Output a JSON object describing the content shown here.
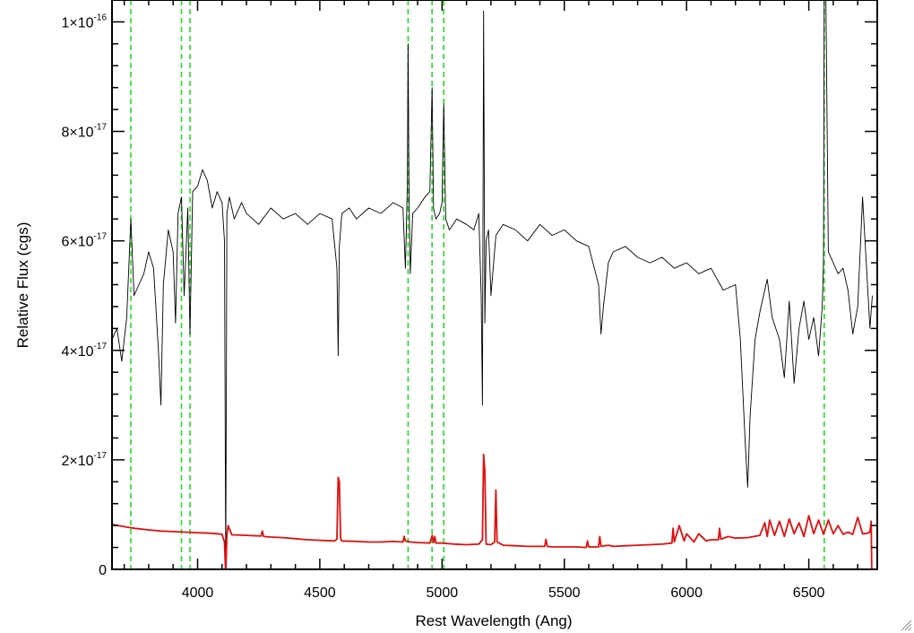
{
  "colors": {
    "spectrum": "#000000",
    "error": "#e01010",
    "lines": "#22dd22",
    "axis": "#000000"
  },
  "chart_data": {
    "type": "line",
    "title": "",
    "xlabel": "Rest Wavelength (Ang)",
    "ylabel": "Relative Flux (cgs)",
    "xlim": [
      3650,
      6780
    ],
    "ylim": [
      0,
      1.04e-16
    ],
    "x_ticks": [
      {
        "value": 4000,
        "label": "4000"
      },
      {
        "value": 4500,
        "label": "4500"
      },
      {
        "value": 5000,
        "label": "5000"
      },
      {
        "value": 5500,
        "label": "5500"
      },
      {
        "value": 6000,
        "label": "6000"
      },
      {
        "value": 6500,
        "label": "6500"
      }
    ],
    "y_ticks": [
      {
        "value": 0,
        "label": "0",
        "exp": ""
      },
      {
        "value": 2e-17,
        "label": "2×10",
        "exp": "-17"
      },
      {
        "value": 4e-17,
        "label": "4×10",
        "exp": "-17"
      },
      {
        "value": 6e-17,
        "label": "6×10",
        "exp": "-17"
      },
      {
        "value": 8e-17,
        "label": "8×10",
        "exp": "-17"
      },
      {
        "value": 1e-16,
        "label": "1×10",
        "exp": "-16"
      }
    ],
    "reference_lines": [
      3727,
      3934,
      3969,
      4861,
      4959,
      5007,
      6563
    ],
    "grid": false,
    "series": [
      {
        "style": "black",
        "x": [
          3650,
          3670,
          3690,
          3710,
          3727,
          3740,
          3760,
          3780,
          3800,
          3820,
          3840,
          3850,
          3860,
          3880,
          3900,
          3910,
          3920,
          3934,
          3945,
          3960,
          3969,
          3980,
          4000,
          4020,
          4040,
          4060,
          4080,
          4100,
          4110,
          4115,
          4120,
          4130,
          4150,
          4180,
          4200,
          4250,
          4300,
          4350,
          4400,
          4450,
          4500,
          4550,
          4570,
          4575,
          4580,
          4590,
          4620,
          4650,
          4700,
          4750,
          4800,
          4840,
          4850,
          4858,
          4861,
          4865,
          4870,
          4880,
          4900,
          4930,
          4950,
          4959,
          4965,
          4975,
          4990,
          5000,
          5007,
          5015,
          5030,
          5060,
          5100,
          5130,
          5150,
          5160,
          5165,
          5170,
          5175,
          5180,
          5190,
          5200,
          5220,
          5250,
          5300,
          5350,
          5400,
          5450,
          5500,
          5550,
          5600,
          5640,
          5650,
          5660,
          5680,
          5700,
          5750,
          5800,
          5850,
          5900,
          5950,
          6000,
          6050,
          6100,
          6150,
          6200,
          6220,
          6240,
          6250,
          6260,
          6280,
          6300,
          6330,
          6350,
          6380,
          6400,
          6420,
          6440,
          6460,
          6480,
          6500,
          6520,
          6540,
          6555,
          6560,
          6563,
          6570,
          6580,
          6600,
          6620,
          6640,
          6660,
          6680,
          6700,
          6720,
          6740,
          6750,
          6760
        ],
        "y": [
          4.2e-17,
          4.4e-17,
          3.8e-17,
          4.6e-17,
          6.4e-17,
          5e-17,
          5.2e-17,
          5.4e-17,
          5.8e-17,
          5.5e-17,
          4e-17,
          3e-17,
          5.2e-17,
          6.2e-17,
          5.8e-17,
          4.5e-17,
          6.5e-17,
          6.8e-17,
          5e-17,
          6.6e-17,
          4.3e-17,
          6.9e-17,
          7e-17,
          7.3e-17,
          7.1e-17,
          6.6e-17,
          6.9e-17,
          6.7e-17,
          6e-17,
          0.0,
          6.5e-17,
          6.8e-17,
          6.4e-17,
          6.7e-17,
          6.5e-17,
          6.3e-17,
          6.6e-17,
          6.4e-17,
          6.5e-17,
          6.3e-17,
          6.5e-17,
          6.4e-17,
          5.5e-17,
          3.9e-17,
          5.9e-17,
          6.5e-17,
          6.6e-17,
          6.4e-17,
          6.6e-17,
          6.5e-17,
          6.7e-17,
          6.6e-17,
          5.5e-17,
          7e-17,
          9.6e-17,
          6.8e-17,
          5.4e-17,
          6.5e-17,
          6.6e-17,
          6.8e-17,
          6.9e-17,
          8.8e-17,
          6.6e-17,
          6.4e-17,
          6.5e-17,
          6.7e-17,
          8.5e-17,
          6.4e-17,
          6.2e-17,
          6.4e-17,
          6.3e-17,
          6.2e-17,
          6.5e-17,
          5e-17,
          3e-17,
          1.02e-16,
          4.5e-17,
          6e-17,
          6.2e-17,
          5e-17,
          6.1e-17,
          6.3e-17,
          6.2e-17,
          6e-17,
          6.3e-17,
          6.1e-17,
          6.2e-17,
          6e-17,
          5.9e-17,
          5.2e-17,
          4.3e-17,
          4.8e-17,
          5.6e-17,
          5.8e-17,
          5.9e-17,
          5.7e-17,
          5.6e-17,
          5.7e-17,
          5.5e-17,
          5.6e-17,
          5.4e-17,
          5.5e-17,
          5.1e-17,
          5.2e-17,
          4.2e-17,
          2.3e-17,
          1.5e-17,
          2.8e-17,
          4.2e-17,
          4.7e-17,
          5.3e-17,
          4.6e-17,
          4.2e-17,
          3.5e-17,
          4.9e-17,
          3.4e-17,
          4.4e-17,
          4.9e-17,
          4.2e-17,
          4.6e-17,
          3.9e-17,
          4.8e-17,
          5.6e-17,
          1.05e-16,
          1.04e-16,
          5.8e-17,
          5.6e-17,
          5.4e-17,
          5.5e-17,
          5.1e-17,
          4.3e-17,
          4.8e-17,
          6.8e-17,
          5.2e-17,
          4.4e-17,
          5e-17
        ]
      },
      {
        "style": "red",
        "x": [
          3650,
          3700,
          3740,
          3800,
          3850,
          3900,
          3950,
          4000,
          4050,
          4080,
          4100,
          4110,
          4115,
          4120,
          4125,
          4140,
          4200,
          4260,
          4265,
          4270,
          4300,
          4350,
          4400,
          4450,
          4500,
          4560,
          4570,
          4575,
          4580,
          4585,
          4590,
          4650,
          4700,
          4750,
          4800,
          4840,
          4845,
          4850,
          4870,
          4900,
          4950,
          4960,
          4965,
          4970,
          4975,
          5000,
          5050,
          5100,
          5150,
          5165,
          5170,
          5175,
          5180,
          5200,
          5215,
          5220,
          5225,
          5250,
          5300,
          5350,
          5400,
          5420,
          5425,
          5430,
          5450,
          5500,
          5550,
          5590,
          5595,
          5600,
          5640,
          5645,
          5650,
          5680,
          5700,
          5750,
          5800,
          5850,
          5900,
          5940,
          5945,
          5950,
          5970,
          5990,
          6000,
          6030,
          6050,
          6080,
          6100,
          6130,
          6135,
          6140,
          6170,
          6200,
          6250,
          6300,
          6320,
          6330,
          6340,
          6360,
          6380,
          6400,
          6420,
          6440,
          6460,
          6480,
          6500,
          6520,
          6540,
          6560,
          6580,
          6600,
          6620,
          6640,
          6660,
          6680,
          6700,
          6720,
          6740,
          6750,
          6755,
          6758
        ],
        "y": [
          8.2e-18,
          7.8e-18,
          7.5e-18,
          7.2e-18,
          7e-18,
          6.9e-18,
          6.8e-18,
          6.7e-18,
          6.6e-18,
          6.5e-18,
          6.4e-18,
          5e-18,
          -1e-18,
          6.3e-18,
          8e-18,
          6.3e-18,
          6.2e-18,
          6.1e-18,
          7e-18,
          6e-18,
          5.9e-18,
          5.8e-18,
          5.6e-18,
          5.4e-18,
          5.3e-18,
          5.2e-18,
          5.5e-18,
          1.68e-17,
          1.6e-17,
          5.6e-18,
          5.2e-18,
          5.1e-18,
          5e-18,
          5e-18,
          5.1e-18,
          5e-18,
          6e-18,
          5.2e-18,
          5e-18,
          4.9e-18,
          4.8e-18,
          6.2e-18,
          4.9e-18,
          6e-18,
          4.8e-18,
          4.8e-18,
          4.6e-18,
          4.5e-18,
          4.6e-18,
          5.4e-18,
          2.1e-17,
          1.8e-17,
          4.6e-18,
          4.5e-18,
          5e-18,
          1.45e-17,
          5e-18,
          4.4e-18,
          4.3e-18,
          4.2e-18,
          4.2e-18,
          4.2e-18,
          5.5e-18,
          4.2e-18,
          4.1e-18,
          4.1e-18,
          4.1e-18,
          4e-18,
          5.2e-18,
          4.1e-18,
          4.1e-18,
          6e-18,
          4.2e-18,
          4.4e-18,
          4.2e-18,
          4.3e-18,
          4.4e-18,
          4.5e-18,
          4.6e-18,
          4.8e-18,
          7.5e-18,
          5e-18,
          8e-18,
          5.2e-18,
          6.5e-18,
          5e-18,
          6.5e-18,
          5.2e-18,
          5.4e-18,
          5.4e-18,
          7.5e-18,
          5.5e-18,
          6e-18,
          5.7e-18,
          5.8e-18,
          6.2e-18,
          8.5e-18,
          6e-18,
          9e-18,
          6.2e-18,
          8.8e-18,
          6e-18,
          9.2e-18,
          6.5e-18,
          8.5e-18,
          6e-18,
          9.8e-18,
          6.5e-18,
          9e-18,
          6.4e-18,
          9e-18,
          6.5e-18,
          8e-18,
          6.4e-18,
          6.8e-18,
          6.4e-18,
          9.5e-18,
          6.5e-18,
          6.6e-18,
          6.8e-18,
          8.8e-18,
          -2e-18
        ]
      }
    ]
  }
}
